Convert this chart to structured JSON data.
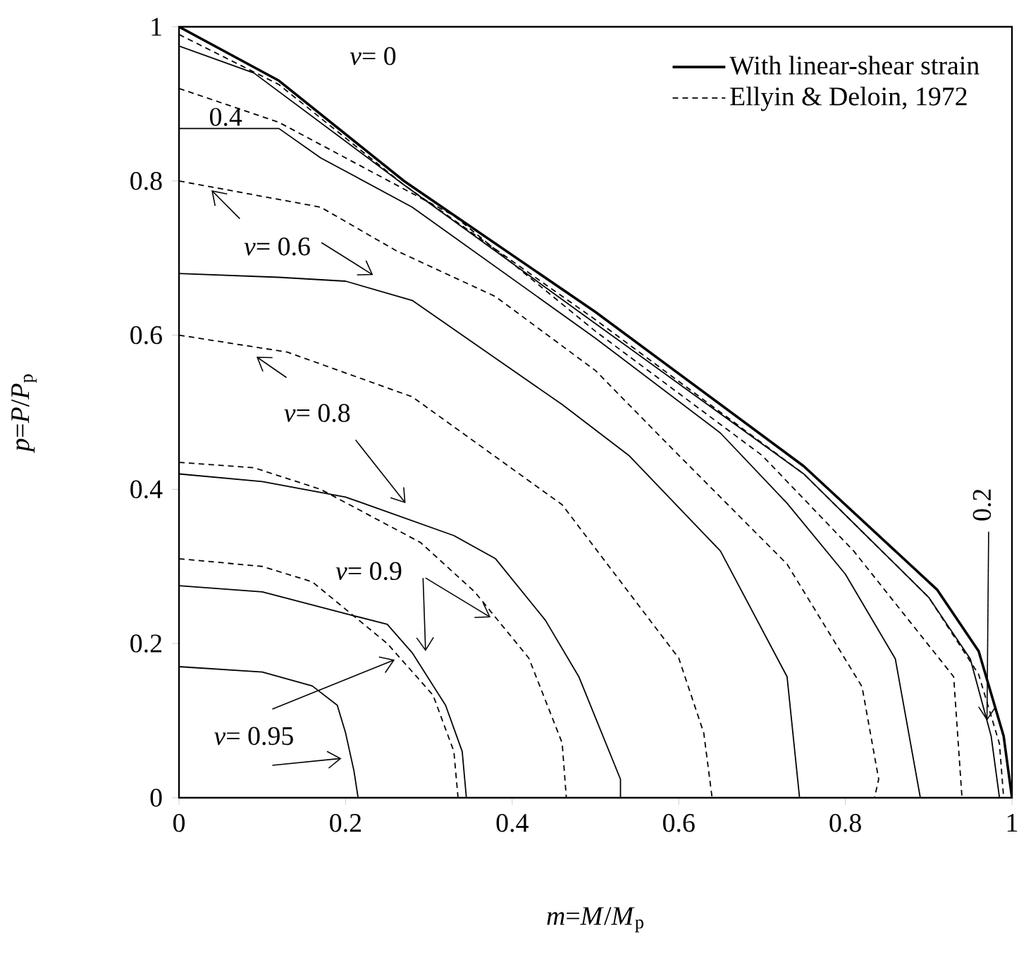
{
  "chart_data": {
    "type": "line",
    "xlabel": "*m*=*M*/*M*$_{p}$",
    "ylabel": "*p*=*P*/*P*$_{p}$",
    "xlim": [
      0,
      1
    ],
    "ylim": [
      0,
      1
    ],
    "xticks": [
      0,
      0.2,
      0.4,
      0.6,
      0.8,
      1
    ],
    "yticks": [
      0,
      0.2,
      0.4,
      0.6,
      0.8,
      1
    ],
    "grid": false,
    "legend": "top right",
    "marker": "none",
    "annotations": [
      "*v*= 0",
      "0.4",
      "*v*= 0.6",
      "*v*= 0.8",
      {
        "text": "*v*= 0.9",
        "x": 0.374,
        "y": 0.234
      },
      "*v*= 0.95",
      {
        "text": "0.2",
        "x": 0.97,
        "y": 0.1
      }
    ],
    "series": [
      {
        "name": "With linear-shear strain",
        "color": "#000000",
        "line_style": "solid",
        "x": [
          0,
          0.12,
          0.27,
          0.5,
          0.75,
          0.91,
          0.96,
          0.99,
          1
        ],
        "values": [
          1,
          0.93,
          0.8,
          0.63,
          0.43,
          0.27,
          0.19,
          0.08,
          0
        ]
      },
      {
        "name": "Ellyin & Deloin, 1972",
        "color": "#000000",
        "line_style": "dashed",
        "x": [
          0,
          0.12,
          0.27,
          0.5,
          0.75,
          0.9,
          0.96,
          0.985,
          0.99
        ],
        "values": [
          0.99,
          0.925,
          0.795,
          0.62,
          0.42,
          0.26,
          0.16,
          0.07,
          0
        ]
      },
      {
        "color": "#000000",
        "line_style": "solid",
        "x": [
          0,
          0.09,
          0.27,
          0.5,
          0.75,
          0.9,
          0.95,
          0.975,
          0.985
        ],
        "values": [
          0.975,
          0.94,
          0.795,
          0.615,
          0.42,
          0.26,
          0.18,
          0.08,
          0
        ]
      },
      {
        "color": "#000000",
        "line_style": "dashed",
        "x": [
          0,
          0.12,
          0.33,
          0.5,
          0.7,
          0.81,
          0.93,
          0.94
        ],
        "values": [
          0.92,
          0.876,
          0.755,
          0.605,
          0.444,
          0.32,
          0.157,
          0
        ]
      },
      {
        "color": "#000000",
        "line_style": "solid",
        "x": [
          0,
          0.12,
          0.17,
          0.28,
          0.5,
          0.65,
          0.73,
          0.8,
          0.86,
          0.89
        ],
        "values": [
          0.868,
          0.868,
          0.83,
          0.766,
          0.596,
          0.473,
          0.382,
          0.29,
          0.18,
          0
        ]
      },
      {
        "color": "#000000",
        "line_style": "dashed",
        "x": [
          0,
          0.17,
          0.26,
          0.38,
          0.5,
          0.59,
          0.73,
          0.82,
          0.84,
          0.835
        ],
        "values": [
          0.8,
          0.766,
          0.71,
          0.65,
          0.554,
          0.455,
          0.303,
          0.144,
          0.024,
          0
        ]
      },
      {
        "color": "#000000",
        "line_style": "solid",
        "x": [
          0,
          0.12,
          0.2,
          0.28,
          0.46,
          0.54,
          0.65,
          0.73,
          0.745
        ],
        "values": [
          0.68,
          0.675,
          0.67,
          0.645,
          0.51,
          0.444,
          0.32,
          0.157,
          0
        ]
      },
      {
        "color": "#000000",
        "line_style": "dashed",
        "x": [
          0,
          0.13,
          0.28,
          0.46,
          0.6,
          0.63,
          0.64
        ],
        "values": [
          0.6,
          0.578,
          0.52,
          0.38,
          0.181,
          0.084,
          0
        ]
      },
      {
        "color": "#000000",
        "line_style": "solid",
        "x": [
          0,
          0.1,
          0.2,
          0.33,
          0.38,
          0.44,
          0.48,
          0.53,
          0.53
        ],
        "values": [
          0.42,
          0.41,
          0.39,
          0.34,
          0.31,
          0.23,
          0.157,
          0.024,
          0
        ]
      },
      {
        "color": "#000000",
        "line_style": "dashed",
        "x": [
          0,
          0.09,
          0.17,
          0.29,
          0.355,
          0.42,
          0.46,
          0.465
        ],
        "values": [
          0.435,
          0.428,
          0.4,
          0.331,
          0.267,
          0.181,
          0.071,
          0
        ]
      },
      {
        "color": "#000000",
        "line_style": "solid",
        "x": [
          0,
          0.1,
          0.21,
          0.25,
          0.28,
          0.32,
          0.34,
          0.345
        ],
        "values": [
          0.275,
          0.267,
          0.236,
          0.225,
          0.188,
          0.12,
          0.06,
          0
        ]
      },
      {
        "color": "#000000",
        "line_style": "dashed",
        "x": [
          0,
          0.1,
          0.16,
          0.25,
          0.305,
          0.33,
          0.335
        ],
        "values": [
          0.31,
          0.3,
          0.28,
          0.2,
          0.133,
          0.06,
          0
        ]
      },
      {
        "color": "#000000",
        "line_style": "solid",
        "x": [
          0,
          0.1,
          0.16,
          0.19,
          0.2,
          0.21,
          0.215
        ],
        "values": [
          0.17,
          0.163,
          0.145,
          0.12,
          0.084,
          0.035,
          0
        ]
      }
    ]
  }
}
